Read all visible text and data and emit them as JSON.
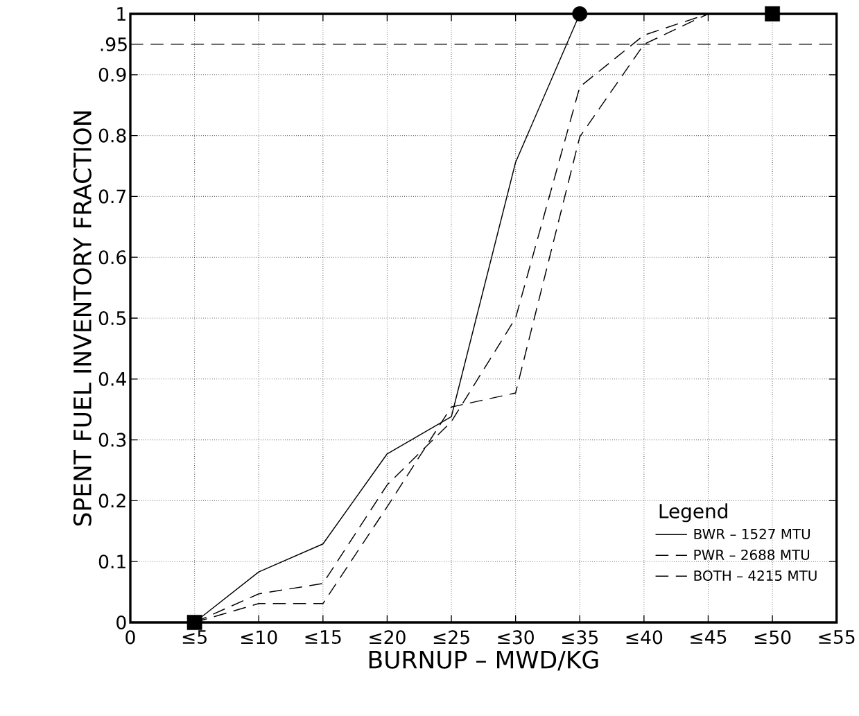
{
  "chart_data": {
    "type": "line",
    "xlabel": "BURNUP – MWD/KG",
    "ylabel": "SPENT FUEL INVENTORY FRACTION",
    "legend_title": "Legend",
    "categories": [
      "0",
      "≤5",
      "≤10",
      "≤15",
      "≤20",
      "≤25",
      "≤30",
      "≤35",
      "≤40",
      "≤45",
      "≤50",
      "≤55"
    ],
    "ylim": [
      0,
      1
    ],
    "yticks": [
      0,
      0.1,
      0.2,
      0.3,
      0.4,
      0.5,
      0.6,
      0.7,
      0.8,
      0.9,
      1
    ],
    "grid": true,
    "legend": "bottom right",
    "ref_lines": [
      {
        "axis": "y",
        "value": 0.95,
        "label": ".95",
        "color": "#000000",
        "line_style": "dashed"
      }
    ],
    "series": [
      {
        "name": "BWR – 1527 MTU",
        "color": "#000000",
        "line_style": "solid",
        "values": [
          null,
          0,
          0.083,
          0.129,
          0.277,
          0.338,
          0.756,
          1.0,
          null,
          null,
          null,
          null
        ]
      },
      {
        "name": "PWR – 2688 MTU",
        "color": "#000000",
        "line_style": "dashed",
        "values": [
          null,
          0,
          0.031,
          0.031,
          0.19,
          0.354,
          0.377,
          0.798,
          0.95,
          1.0,
          null,
          null
        ]
      },
      {
        "name": "BOTH – 4215 MTU",
        "color": "#000000",
        "line_style": "dashed",
        "values": [
          null,
          0,
          0.047,
          0.064,
          0.226,
          0.33,
          0.5,
          0.88,
          0.965,
          1.0,
          null,
          null
        ]
      },
      {
        "type": "scatter",
        "color": "#000000",
        "marker": "circle",
        "values": [
          null,
          null,
          null,
          null,
          null,
          null,
          null,
          1.0,
          null,
          null,
          null,
          null
        ]
      },
      {
        "type": "scatter",
        "color": "#000000",
        "marker": "square",
        "values": [
          null,
          0,
          null,
          null,
          null,
          null,
          null,
          null,
          null,
          null,
          1.0,
          null
        ]
      }
    ]
  }
}
